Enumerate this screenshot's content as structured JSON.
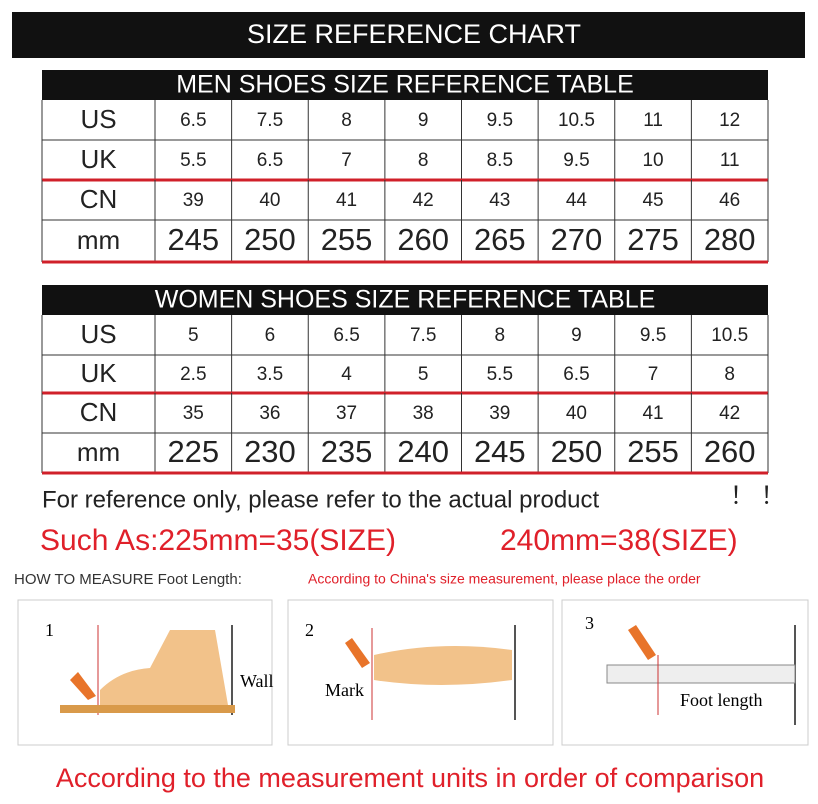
{
  "header": {
    "title": "SIZE REFERENCE CHART"
  },
  "tables": [
    {
      "title": "MEN SHOES SIZE REFERENCE TABLE",
      "rows": [
        [
          "US",
          "6.5",
          "7.5",
          "8",
          "9",
          "9.5",
          "10.5",
          "11",
          "12"
        ],
        [
          "UK",
          "5.5",
          "6.5",
          "7",
          "8",
          "8.5",
          "9.5",
          "10",
          "11"
        ],
        [
          "CN",
          "39",
          "40",
          "41",
          "42",
          "43",
          "44",
          "45",
          "46"
        ],
        [
          "mm",
          "245",
          "250",
          "255",
          "260",
          "265",
          "270",
          "275",
          "280"
        ]
      ]
    },
    {
      "title": "WOMEN SHOES SIZE REFERENCE TABLE",
      "rows": [
        [
          "US",
          "5",
          "6",
          "6.5",
          "7.5",
          "8",
          "9",
          "9.5",
          "10.5"
        ],
        [
          "UK",
          "2.5",
          "3.5",
          "4",
          "5",
          "5.5",
          "6.5",
          "7",
          "8"
        ],
        [
          "CN",
          "35",
          "36",
          "37",
          "38",
          "39",
          "40",
          "41",
          "42"
        ],
        [
          "mm",
          "225",
          "230",
          "235",
          "240",
          "245",
          "250",
          "255",
          "260"
        ]
      ]
    }
  ],
  "note": "For reference only, please refer to the actual product",
  "exclaim": "！ ！",
  "example": [
    "Such As:225mm=35(SIZE)",
    "240mm=38(SIZE)"
  ],
  "measure": {
    "heading": "HOW TO MEASURE Foot Length:",
    "hint": "According to China's size measurement, please place the order",
    "steps": [
      {
        "number": "1",
        "label": "Wall"
      },
      {
        "number": "2",
        "label": "Mark"
      },
      {
        "number": "3",
        "label": "Foot length"
      }
    ]
  },
  "footer": "According to the measurement units in order of comparison"
}
